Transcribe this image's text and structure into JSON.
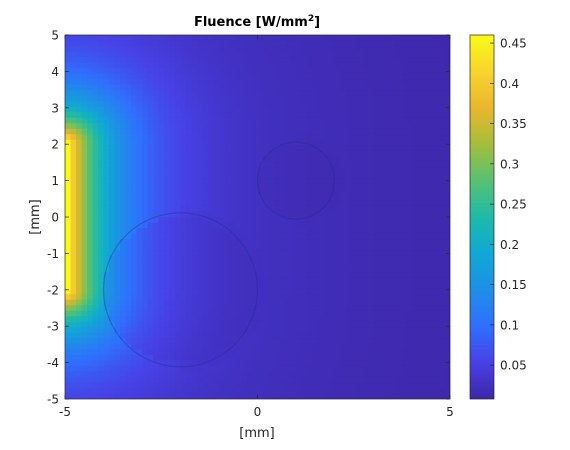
{
  "chart_data": {
    "type": "heatmap",
    "title": "Fluence [W/mm",
    "title_superscript": "2",
    "title_suffix": "]",
    "xlabel": "[mm]",
    "ylabel": "[mm]",
    "xlim": [
      -5,
      5
    ],
    "ylim": [
      -5,
      5
    ],
    "xticks": [
      -5,
      0,
      5
    ],
    "yticks": [
      5,
      4,
      3,
      2,
      1,
      0,
      -1,
      -2,
      -3,
      -4,
      -5
    ],
    "colorbar": {
      "colormap": "parula",
      "range": [
        0.008,
        0.46
      ],
      "ticks": [
        "0.45",
        "0.4",
        "0.35",
        "0.3",
        "0.25",
        "0.2",
        "0.15",
        "0.1",
        "0.05"
      ]
    },
    "source": {
      "edge_x": -5,
      "y_range": [
        -2,
        2
      ],
      "peak": 0.42
    },
    "inclusions": [
      {
        "cx": -2,
        "cy": -2,
        "r": 2,
        "kind": "absorbing"
      },
      {
        "cx": 1,
        "cy": 1,
        "r": 1,
        "kind": "absorbing"
      }
    ],
    "grid": false
  }
}
